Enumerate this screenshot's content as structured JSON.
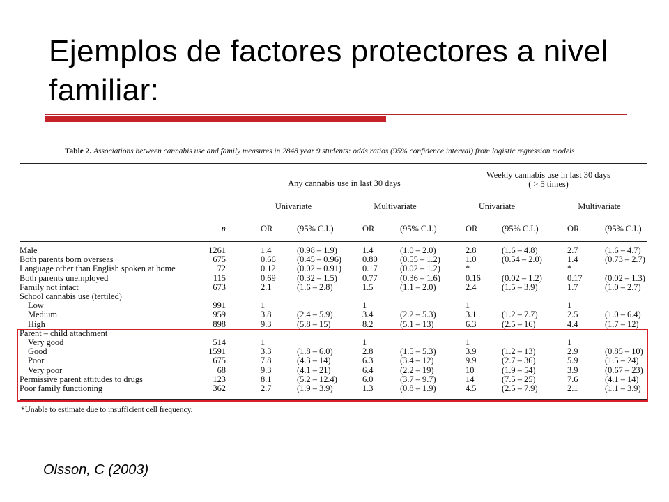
{
  "slide": {
    "title": "Ejemplos de factores protectores a nivel familiar:",
    "citation": "Olsson, C (2003)"
  },
  "colors": {
    "accent": "#c6222a",
    "highlight_box": "#d81f2a"
  },
  "table": {
    "caption_label": "Table 2.",
    "caption_text": "Associations between cannabis use and family measures in 2848 year 9 students: odds ratios (95% confidence interval) from logistic regression models",
    "group_any": "Any cannabis use in last 30 days",
    "group_weekly_line1": "Weekly cannabis use in last 30 days",
    "group_weekly_line2": "( > 5 times)",
    "sub_univariate": "Univariate",
    "sub_multivariate": "Multivariate",
    "col_n": "n",
    "col_or": "OR",
    "col_ci": "(95% C.I.)",
    "footnote": "*Unable to estimate due to insufficient cell frequency.",
    "rows": [
      {
        "label": "Male",
        "n": "1261",
        "c": [
          "1.4",
          "(0.98 – 1.9)",
          "1.4",
          "(1.0 – 2.0)",
          "2.8",
          "(1.6 – 4.8)",
          "2.7",
          "(1.6 – 4.7)"
        ]
      },
      {
        "label": "Both parents born overseas",
        "n": "675",
        "c": [
          "0.66",
          "(0.45 – 0.96)",
          "0.80",
          "(0.55 – 1.2)",
          "1.0",
          "(0.54 – 2.0)",
          "1.4",
          "(0.73 – 2.7)"
        ]
      },
      {
        "label": "Language other than English spoken at home",
        "n": "72",
        "c": [
          "0.12",
          "(0.02 – 0.91)",
          "0.17",
          "(0.02 – 1.2)",
          "*",
          "",
          "*",
          ""
        ]
      },
      {
        "label": "Both parents unemployed",
        "n": "115",
        "c": [
          "0.69",
          "(0.32 – 1.5)",
          "0.77",
          "(0.36 – 1.6)",
          "0.16",
          "(0.02 – 1.2)",
          "0.17",
          "(0.02 – 1.3)"
        ]
      },
      {
        "label": "Family not intact",
        "n": "673",
        "c": [
          "2.1",
          "(1.6 – 2.8)",
          "1.5",
          "(1.1 – 2.0)",
          "2.4",
          "(1.5 – 3.9)",
          "1.7",
          "(1.0 – 2.7)"
        ]
      },
      {
        "label": "School cannabis use (tertiled)",
        "n": "",
        "c": [
          "",
          "",
          "",
          "",
          "",
          "",
          "",
          ""
        ]
      },
      {
        "label": "Low",
        "indent": true,
        "n": "991",
        "c": [
          "1",
          "",
          "1",
          "",
          "1",
          "",
          "1",
          ""
        ]
      },
      {
        "label": "Medium",
        "indent": true,
        "n": "959",
        "c": [
          "3.8",
          "(2.4 – 5.9)",
          "3.4",
          "(2.2 – 5.3)",
          "3.1",
          "(1.2 – 7.7)",
          "2.5",
          "(1.0 – 6.4)"
        ]
      },
      {
        "label": "High",
        "indent": true,
        "n": "898",
        "c": [
          "9.3",
          "(5.8 – 15)",
          "8.2",
          "(5.1 – 13)",
          "6.3",
          "(2.5 – 16)",
          "4.4",
          "(1.7 – 12)"
        ]
      },
      {
        "label": "Parent – child attachment",
        "n": "",
        "c": [
          "",
          "",
          "",
          "",
          "",
          "",
          "",
          ""
        ]
      },
      {
        "label": "Very good",
        "indent": true,
        "n": "514",
        "c": [
          "1",
          "",
          "1",
          "",
          "1",
          "",
          "1",
          ""
        ]
      },
      {
        "label": "Good",
        "indent": true,
        "n": "1591",
        "c": [
          "3.3",
          "(1.8 – 6.0)",
          "2.8",
          "(1.5 – 5.3)",
          "3.9",
          "(1.2 – 13)",
          "2.9",
          "(0.85 – 10)"
        ]
      },
      {
        "label": "Poor",
        "indent": true,
        "n": "675",
        "c": [
          "7.8",
          "(4.3 – 14)",
          "6.3",
          "(3.4 – 12)",
          "9.9",
          "(2.7 – 36)",
          "5.9",
          "(1.5 – 24)"
        ]
      },
      {
        "label": "Very poor",
        "indent": true,
        "n": "68",
        "c": [
          "9.3",
          "(4.1 – 21)",
          "6.4",
          "(2.2 – 19)",
          "10",
          "(1.9 – 54)",
          "3.9",
          "(0.67 – 23)"
        ]
      },
      {
        "label": "Permissive parent attitudes to drugs",
        "n": "123",
        "c": [
          "8.1",
          "(5.2 – 12.4)",
          "6.0",
          "(3.7 – 9.7)",
          "14",
          "(7.5 – 25)",
          "7.6",
          "(4.1 – 14)"
        ]
      },
      {
        "label": "Poor family functioning",
        "n": "362",
        "c": [
          "2.7",
          "(1.9 – 3.9)",
          "1.3",
          "(0.8 – 1.9)",
          "4.5",
          "(2.5 – 7.9)",
          "2.1",
          "(1.1 – 3.9)"
        ]
      }
    ]
  }
}
